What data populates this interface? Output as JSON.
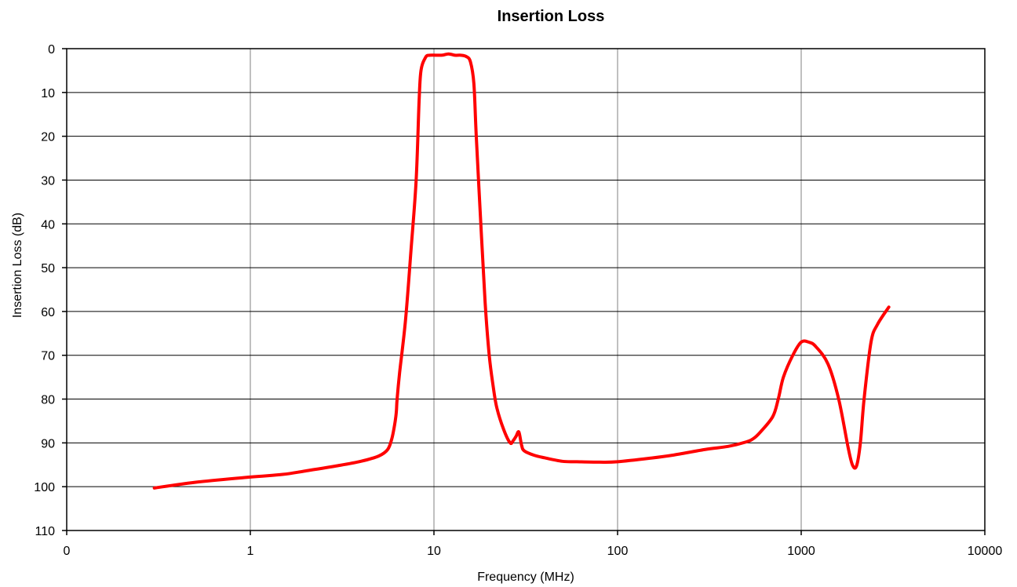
{
  "chart_data": {
    "type": "line",
    "title": "Insertion Loss",
    "xlabel": "Frequency (MHz)",
    "ylabel": "Insertion Loss (dB)",
    "x_scale": "log",
    "y_inverted": true,
    "xlim": [
      0.1,
      10000
    ],
    "ylim": [
      0,
      110
    ],
    "x_tick_labels": [
      "0",
      "1",
      "10",
      "100",
      "1000",
      "10000"
    ],
    "y_tick_labels": [
      "0",
      "10",
      "20",
      "30",
      "40",
      "50",
      "60",
      "70",
      "80",
      "90",
      "100",
      "110"
    ],
    "grid": true,
    "legend": "none",
    "line_color": "#ff0000",
    "series": [
      {
        "x": [
          0.3,
          0.5,
          1,
          1.5,
          2,
          3,
          4,
          5,
          5.6,
          5.9,
          6.1,
          6.2,
          6.25,
          6.3,
          6.5,
          7,
          7.5,
          8,
          8.3,
          8.5,
          9,
          9.5,
          11,
          12,
          13,
          14,
          15,
          15.8,
          16.5,
          17,
          18,
          19,
          20,
          21,
          22,
          24,
          26,
          27,
          28,
          29,
          30,
          31,
          35,
          40,
          50,
          60,
          80,
          100,
          150,
          200,
          300,
          400,
          500,
          550,
          600,
          700,
          750,
          800,
          900,
          1000,
          1100,
          1200,
          1400,
          1600,
          1800,
          1900,
          2000,
          2100,
          2200,
          2400,
          2600,
          3000
        ],
        "y": [
          100.3,
          99,
          97.8,
          97.2,
          96.4,
          95.2,
          94.2,
          93,
          91.5,
          89,
          86,
          84,
          82.5,
          80,
          74,
          62,
          46,
          30,
          12,
          5,
          2,
          1.5,
          1.5,
          1.2,
          1.5,
          1.5,
          1.8,
          3,
          8,
          20,
          40,
          58,
          70,
          77,
          82,
          87,
          90,
          89.5,
          88.5,
          87.5,
          90.5,
          91.8,
          92.8,
          93.4,
          94.2,
          94.3,
          94.4,
          94.3,
          93.5,
          92.8,
          91.5,
          90.8,
          89.8,
          89,
          87.5,
          84,
          80,
          75,
          70,
          67,
          67,
          68,
          72,
          80,
          91,
          95,
          95.3,
          90,
          80,
          67,
          63,
          59
        ]
      }
    ]
  }
}
